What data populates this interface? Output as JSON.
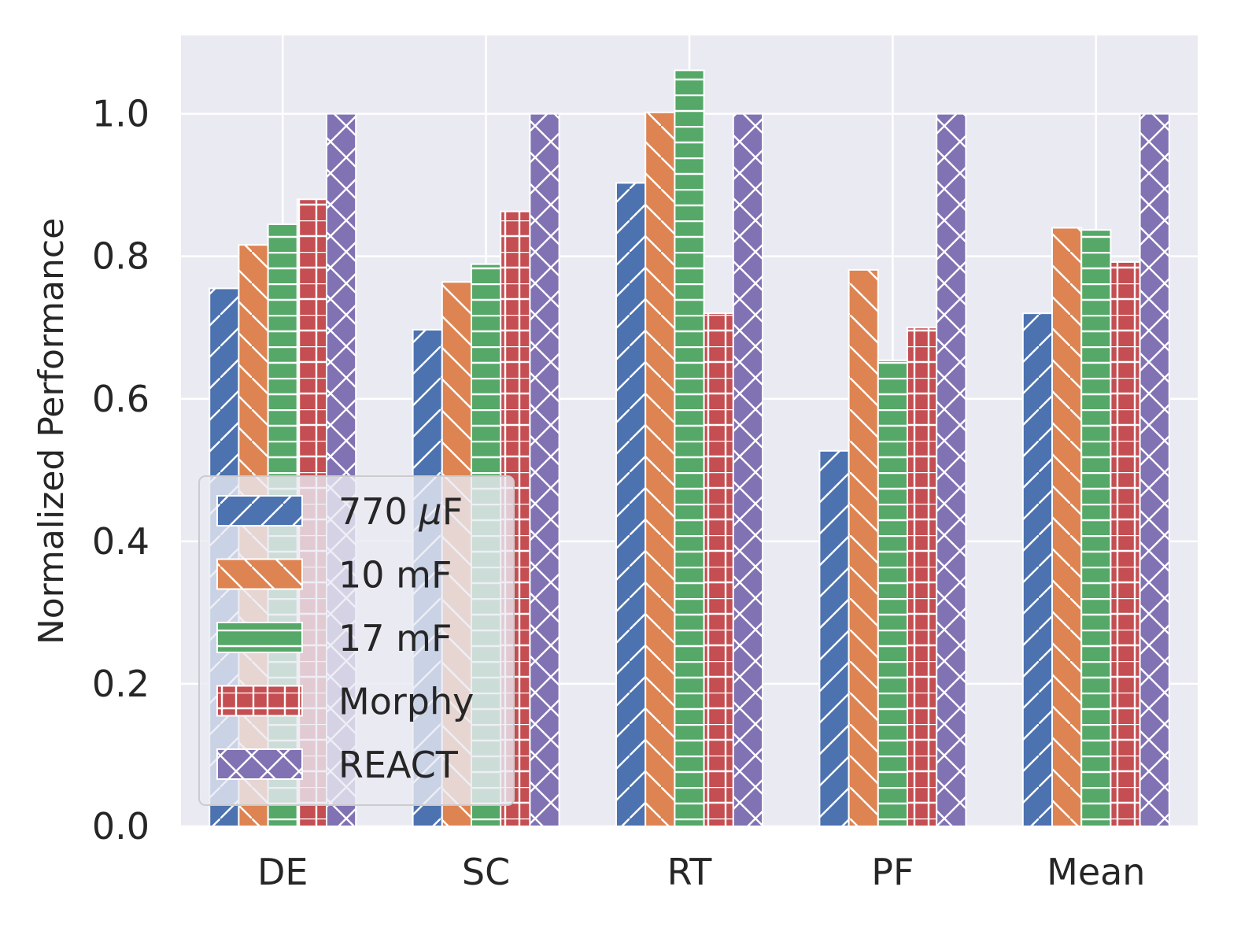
{
  "chart_data": {
    "type": "bar",
    "title": "",
    "xlabel": "",
    "ylabel": "Normalized Performance",
    "categories": [
      "DE",
      "SC",
      "RT",
      "PF",
      "Mean"
    ],
    "ylim": [
      0,
      1.11
    ],
    "yticks": [
      0.0,
      0.2,
      0.4,
      0.6,
      0.8,
      1.0
    ],
    "ytick_labels": [
      "0.0",
      "0.2",
      "0.4",
      "0.6",
      "0.8",
      "1.0"
    ],
    "grid": true,
    "legend_position": "lower-left",
    "series": [
      {
        "name": "770 μF",
        "name_prefix": "770 ",
        "name_symbol": "μ",
        "name_suffix": "F",
        "color": "#4c72b0",
        "hatch": "forward-diagonal",
        "values": [
          0.755,
          0.697,
          0.903,
          0.527,
          0.72
        ]
      },
      {
        "name": "10 mF",
        "color": "#dd8452",
        "hatch": "back-diagonal",
        "values": [
          0.816,
          0.764,
          1.002,
          0.781,
          0.84
        ]
      },
      {
        "name": "17 mF",
        "color": "#55a868",
        "hatch": "horizontal",
        "values": [
          0.845,
          0.789,
          1.061,
          0.654,
          0.837
        ]
      },
      {
        "name": "Morphy",
        "color": "#c44e52",
        "hatch": "grid",
        "values": [
          0.88,
          0.863,
          0.72,
          0.7,
          0.792
        ]
      },
      {
        "name": "REACT",
        "color": "#8172b3",
        "hatch": "cross-diagonal",
        "values": [
          1.0,
          1.0,
          1.0,
          1.0,
          1.0
        ]
      }
    ]
  },
  "colors": {
    "plot_background": "#eaeaf2",
    "grid": "#ffffff",
    "text": "#262626"
  }
}
